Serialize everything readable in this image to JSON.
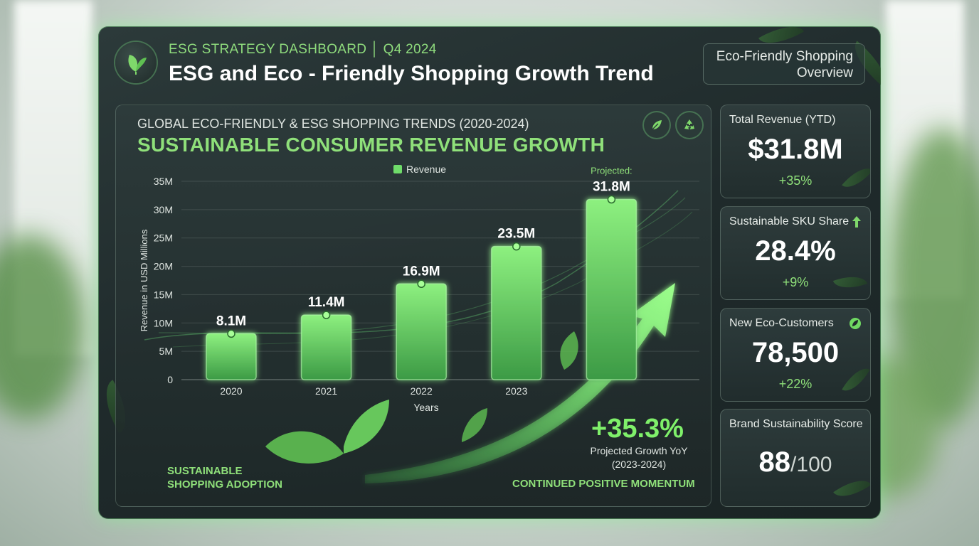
{
  "header": {
    "kicker": "ESG STRATEGY DASHBOARD │ Q4 2024",
    "title": "ESG and Eco - Friendly Shopping Growth Trend",
    "overview_line1": "Eco-Friendly Shopping",
    "overview_line2": "Overview"
  },
  "chart_card": {
    "subtitle": "GLOBAL ECO-FRIENDLY & ESG SHOPPING TRENDS (2020-2024)",
    "title": "SUSTAINABLE CONSUMER REVENUE GROWTH",
    "growth_pct": "+35.3%",
    "growth_label_line1": "Projected Growth YoY",
    "growth_label_line2": "(2023-2024)",
    "footer_left_line1": "SUSTAINABLE",
    "footer_left_line2": "SHOPPING ADOPTION",
    "footer_right": "CONTINUED POSITIVE MOMENTUM"
  },
  "chart_data": {
    "type": "bar",
    "categories": [
      "2020",
      "2021",
      "2022",
      "2023",
      ""
    ],
    "series": [
      {
        "name": "Revenue",
        "values": [
          8.1,
          11.4,
          16.9,
          23.5,
          31.8
        ]
      }
    ],
    "data_labels": [
      "8.1M",
      "11.4M",
      "16.9M",
      "23.5M",
      "31.8M"
    ],
    "projected_label": "Projected:",
    "xlabel": "Years",
    "ylabel": "Revenue in USD Millions",
    "ylim": [
      0,
      35
    ],
    "yticks": [
      "0",
      "5M",
      "10M",
      "15M",
      "20M",
      "25M",
      "30M",
      "35M"
    ],
    "grid": true,
    "legend": "top-center",
    "colors": {
      "bar": "#6fdc6a",
      "accent": "#8fe07a"
    }
  },
  "kpis": [
    {
      "label": "Total Revenue (YTD)",
      "value": "$31.8M",
      "delta": "+35%"
    },
    {
      "label": "Sustainable SKU Share",
      "value": "28.4%",
      "delta": "+9%",
      "icon": "arrow-up-icon"
    },
    {
      "label": "New Eco-Customers",
      "value": "78,500",
      "delta": "+22%",
      "icon": "leaf-badge-icon"
    },
    {
      "label": "Brand Sustainability Score",
      "value": "88",
      "suffix": "/100"
    }
  ]
}
